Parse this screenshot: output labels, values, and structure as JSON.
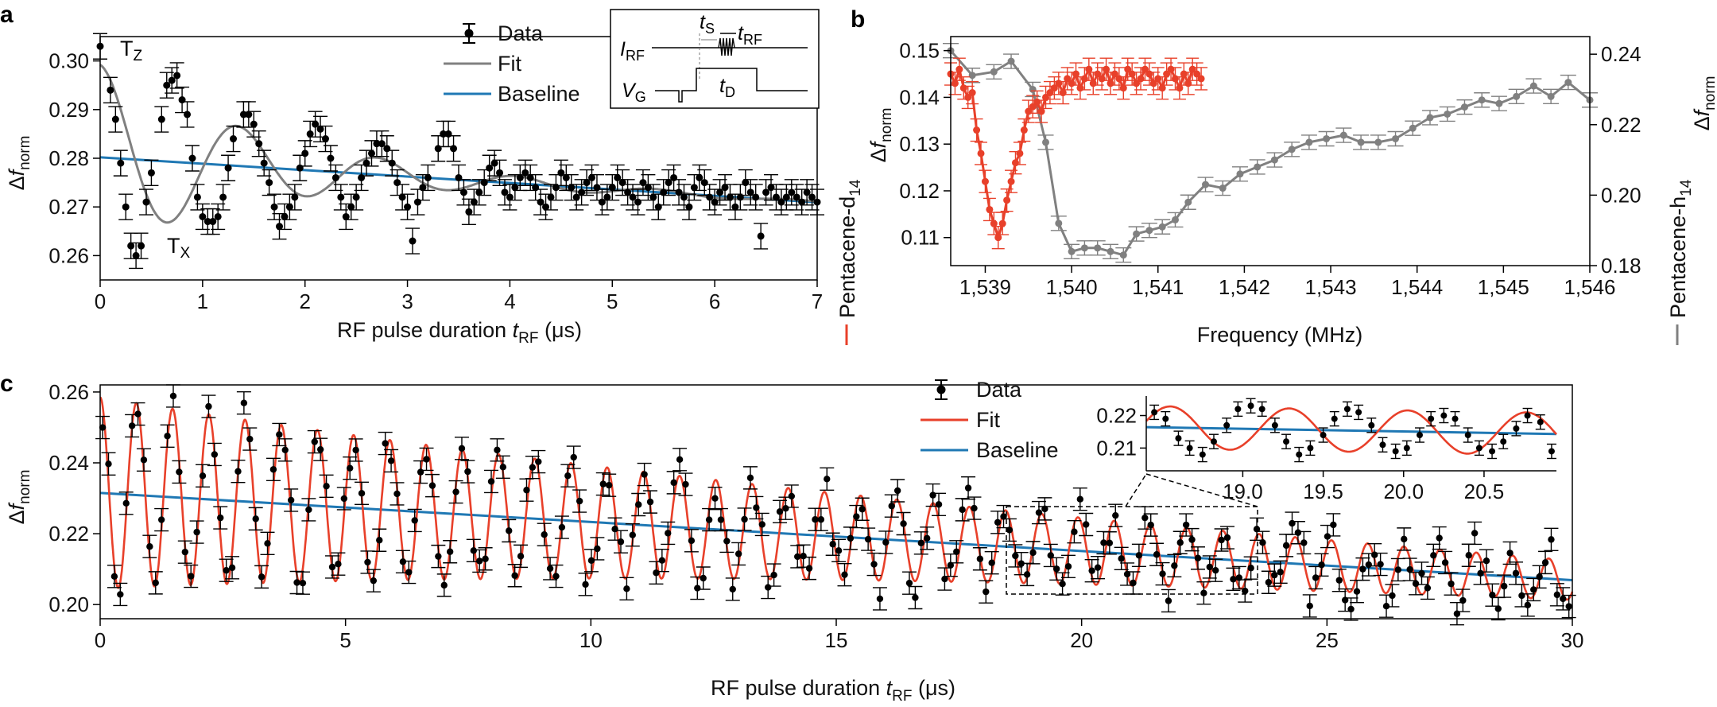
{
  "colors": {
    "data": "#000000",
    "fit_gray": "#808080",
    "fit_red": "#e8402a",
    "baseline": "#1f78b4",
    "axis": "#000000"
  },
  "panels": {
    "a": "a",
    "b": "b",
    "c": "c"
  },
  "chart_data": [
    {
      "id": "a",
      "type": "scatter",
      "xlabel_parts": [
        "RF pulse duration ",
        "t",
        "RF",
        " (μs)"
      ],
      "ylabel_parts": [
        "Δ",
        "f",
        "norm"
      ],
      "xlim": [
        0,
        7
      ],
      "ylim": [
        0.255,
        0.305
      ],
      "xticks": [
        0,
        1,
        2,
        3,
        4,
        5,
        6,
        7
      ],
      "xtick_labels": [
        "0",
        "1",
        "2",
        "3",
        "4",
        "5",
        "6",
        "7"
      ],
      "yticks": [
        0.26,
        0.27,
        0.28,
        0.29,
        0.3
      ],
      "ytick_labels": [
        "0.26",
        "0.27",
        "0.28",
        "0.29",
        "0.30"
      ],
      "legend": [
        "Data",
        "Fit",
        "Baseline"
      ],
      "annotations": {
        "tz": "T",
        "tz_sub": "Z",
        "tx": "T",
        "tx_sub": "X"
      },
      "inset": {
        "irf": "I",
        "irf_sub": "RF",
        "vg": "V",
        "vg_sub": "G",
        "ts": "t",
        "ts_sub": "S",
        "trf": "t",
        "trf_sub": "RF",
        "td": "t",
        "td_sub": "D"
      },
      "fit": {
        "baseline": [
          0.2802,
          -0.00132
        ],
        "amp0": 0.019,
        "tau": 1.6,
        "freq": 0.735,
        "phase": 0.0
      },
      "series": [
        {
          "x": [
            0.0,
            0.1,
            0.15,
            0.2,
            0.25,
            0.3,
            0.35,
            0.4,
            0.45,
            0.5,
            0.6,
            0.65,
            0.7,
            0.75,
            0.8,
            0.85,
            0.9,
            0.95,
            1.0,
            1.05,
            1.1,
            1.15,
            1.2,
            1.25,
            1.3,
            1.4,
            1.45,
            1.5,
            1.55,
            1.6,
            1.65,
            1.7,
            1.75,
            1.8,
            1.85,
            1.9,
            1.95,
            2.0,
            2.05,
            2.1,
            2.15,
            2.2,
            2.25,
            2.3,
            2.35,
            2.4,
            2.45,
            2.5,
            2.55,
            2.6,
            2.65,
            2.7,
            2.75,
            2.8,
            2.85,
            2.9,
            2.95,
            3.0,
            3.05,
            3.1,
            3.15,
            3.2,
            3.3,
            3.35,
            3.4,
            3.45,
            3.5,
            3.55,
            3.6,
            3.65,
            3.7,
            3.75,
            3.8,
            3.85,
            3.9,
            3.95,
            4.0,
            4.05,
            4.1,
            4.15,
            4.2,
            4.25,
            4.3,
            4.35,
            4.4,
            4.45,
            4.5,
            4.55,
            4.6,
            4.65,
            4.7,
            4.75,
            4.8,
            4.85,
            4.9,
            4.95,
            5.0,
            5.05,
            5.1,
            5.15,
            5.2,
            5.25,
            5.3,
            5.35,
            5.4,
            5.45,
            5.5,
            5.55,
            5.6,
            5.65,
            5.7,
            5.75,
            5.8,
            5.85,
            5.9,
            5.95,
            6.0,
            6.05,
            6.1,
            6.15,
            6.2,
            6.25,
            6.3,
            6.35,
            6.4,
            6.45,
            6.5,
            6.55,
            6.6,
            6.65,
            6.7,
            6.75,
            6.8,
            6.85,
            6.9,
            6.95,
            7.0
          ],
          "y": [
            0.303,
            0.294,
            0.288,
            0.279,
            0.27,
            0.262,
            0.26,
            0.262,
            0.271,
            0.277,
            0.288,
            0.295,
            0.296,
            0.297,
            0.292,
            0.289,
            0.28,
            0.272,
            0.268,
            0.267,
            0.267,
            0.268,
            0.272,
            0.278,
            0.284,
            0.289,
            0.289,
            0.287,
            0.283,
            0.279,
            0.275,
            0.27,
            0.266,
            0.268,
            0.27,
            0.272,
            0.278,
            0.281,
            0.285,
            0.287,
            0.286,
            0.284,
            0.28,
            0.276,
            0.272,
            0.268,
            0.27,
            0.272,
            0.276,
            0.279,
            0.281,
            0.283,
            0.283,
            0.282,
            0.279,
            0.275,
            0.272,
            0.27,
            0.263,
            0.271,
            0.274,
            0.276,
            0.282,
            0.285,
            0.285,
            0.282,
            0.276,
            0.273,
            0.269,
            0.271,
            0.273,
            0.275,
            0.278,
            0.279,
            0.277,
            0.273,
            0.272,
            0.274,
            0.276,
            0.277,
            0.276,
            0.274,
            0.271,
            0.27,
            0.272,
            0.274,
            0.277,
            0.276,
            0.274,
            0.272,
            0.273,
            0.275,
            0.276,
            0.274,
            0.271,
            0.272,
            0.274,
            0.276,
            0.275,
            0.273,
            0.272,
            0.271,
            0.275,
            0.274,
            0.272,
            0.27,
            0.273,
            0.275,
            0.276,
            0.273,
            0.272,
            0.27,
            0.274,
            0.276,
            0.275,
            0.272,
            0.271,
            0.273,
            0.274,
            0.272,
            0.27,
            0.272,
            0.275,
            0.273,
            0.272,
            0.264,
            0.273,
            0.274,
            0.272,
            0.271,
            0.272,
            0.273,
            0.272,
            0.271,
            0.273,
            0.272,
            0.271
          ]
        }
      ]
    },
    {
      "id": "b",
      "type": "line",
      "xlabel": "Frequency (MHz)",
      "ylabel_left_parts": [
        "Δ",
        "f",
        "norm"
      ],
      "ylabel_right_parts": [
        "Δ",
        "f",
        "norm"
      ],
      "xlim": [
        1538.6,
        1546.0
      ],
      "ylim_left": [
        0.104,
        0.153
      ],
      "ylim_right": [
        0.18,
        0.245
      ],
      "xticks": [
        1539,
        1540,
        1541,
        1542,
        1543,
        1544,
        1545,
        1546
      ],
      "xtick_labels": [
        "1,539",
        "1,540",
        "1,541",
        "1,542",
        "1,543",
        "1,544",
        "1,545",
        "1,546"
      ],
      "yticks_left": [
        0.11,
        0.12,
        0.13,
        0.14,
        0.15
      ],
      "ytick_labels_left": [
        "0.11",
        "0.12",
        "0.13",
        "0.14",
        "0.15"
      ],
      "yticks_right": [
        0.18,
        0.2,
        0.22,
        0.24
      ],
      "ytick_labels_right": [
        "0.18",
        "0.20",
        "0.22",
        "0.24"
      ],
      "series": [
        {
          "name_parts": [
            "Pentacene-d",
            "14"
          ],
          "axis": "left",
          "x": [
            1538.6,
            1538.65,
            1538.7,
            1538.75,
            1538.8,
            1538.85,
            1538.9,
            1538.95,
            1539.0,
            1539.05,
            1539.1,
            1539.15,
            1539.2,
            1539.25,
            1539.3,
            1539.35,
            1539.4,
            1539.45,
            1539.5,
            1539.55,
            1539.6,
            1539.65,
            1539.7,
            1539.75,
            1539.8,
            1539.85,
            1539.9,
            1539.95,
            1540.0,
            1540.05,
            1540.1,
            1540.15,
            1540.2,
            1540.25,
            1540.3,
            1540.35,
            1540.4,
            1540.45,
            1540.5,
            1540.55,
            1540.6,
            1540.65,
            1540.7,
            1540.75,
            1540.8,
            1540.85,
            1540.9,
            1540.95,
            1541.0,
            1541.05,
            1541.1,
            1541.15,
            1541.2,
            1541.25,
            1541.3,
            1541.35,
            1541.4,
            1541.45,
            1541.5
          ],
          "y": [
            0.145,
            0.143,
            0.146,
            0.142,
            0.14,
            0.141,
            0.133,
            0.128,
            0.122,
            0.116,
            0.113,
            0.11,
            0.113,
            0.118,
            0.122,
            0.126,
            0.128,
            0.133,
            0.137,
            0.138,
            0.139,
            0.137,
            0.14,
            0.141,
            0.142,
            0.143,
            0.141,
            0.144,
            0.143,
            0.145,
            0.142,
            0.144,
            0.146,
            0.143,
            0.145,
            0.144,
            0.146,
            0.143,
            0.145,
            0.144,
            0.142,
            0.146,
            0.145,
            0.143,
            0.144,
            0.146,
            0.145,
            0.143,
            0.144,
            0.142,
            0.145,
            0.146,
            0.144,
            0.142,
            0.145,
            0.143,
            0.146,
            0.145,
            0.144
          ]
        },
        {
          "name_parts": [
            "Pentacene-h",
            "14"
          ],
          "axis": "right",
          "x": [
            1538.6,
            1538.85,
            1539.1,
            1539.3,
            1539.55,
            1539.7,
            1539.85,
            1540.0,
            1540.15,
            1540.3,
            1540.45,
            1540.6,
            1540.75,
            1540.9,
            1541.05,
            1541.2,
            1541.35,
            1541.55,
            1541.75,
            1541.95,
            1542.15,
            1542.35,
            1542.55,
            1542.75,
            1542.95,
            1543.15,
            1543.35,
            1543.55,
            1543.75,
            1543.95,
            1544.15,
            1544.35,
            1544.55,
            1544.75,
            1544.95,
            1545.15,
            1545.35,
            1545.55,
            1545.75,
            1546.0
          ],
          "y": [
            0.241,
            0.234,
            0.235,
            0.238,
            0.23,
            0.215,
            0.192,
            0.184,
            0.185,
            0.185,
            0.184,
            0.183,
            0.189,
            0.19,
            0.191,
            0.193,
            0.198,
            0.203,
            0.202,
            0.206,
            0.208,
            0.21,
            0.213,
            0.215,
            0.216,
            0.217,
            0.215,
            0.215,
            0.216,
            0.219,
            0.222,
            0.223,
            0.225,
            0.227,
            0.226,
            0.228,
            0.231,
            0.228,
            0.232,
            0.227
          ]
        }
      ]
    },
    {
      "id": "c",
      "type": "scatter",
      "xlabel_parts": [
        "RF pulse duration ",
        "t",
        "RF",
        " (μs)"
      ],
      "ylabel_parts": [
        "Δ",
        "f",
        "norm"
      ],
      "xlim": [
        0,
        30
      ],
      "ylim": [
        0.196,
        0.262
      ],
      "xticks": [
        0,
        5,
        10,
        15,
        20,
        25,
        30
      ],
      "xtick_labels": [
        "0",
        "5",
        "10",
        "15",
        "20",
        "25",
        "30"
      ],
      "yticks": [
        0.2,
        0.22,
        0.24,
        0.26
      ],
      "ytick_labels": [
        "0.20",
        "0.22",
        "0.24",
        "0.26"
      ],
      "legend": [
        "Data",
        "Fit",
        "Baseline"
      ],
      "fit": {
        "baseline": [
          0.2315,
          -0.00082
        ],
        "amp0": 0.027,
        "tau": 19.0,
        "freq": 1.355,
        "phase": 0.0,
        "period_step": 0.36
      },
      "inset": {
        "xlim": [
          18.4,
          20.95
        ],
        "ylim": [
          0.203,
          0.226
        ],
        "xticks": [
          19.0,
          19.5,
          20.0,
          20.5
        ],
        "xtick_labels": [
          "19.0",
          "19.5",
          "20.0",
          "20.5"
        ],
        "yticks": [
          0.21,
          0.22
        ],
        "ytick_labels": [
          "0.21",
          "0.22"
        ],
        "x": [
          18.45,
          18.52,
          18.6,
          18.67,
          18.75,
          18.82,
          18.9,
          18.97,
          19.05,
          19.12,
          19.2,
          19.27,
          19.35,
          19.42,
          19.5,
          19.57,
          19.65,
          19.72,
          19.8,
          19.87,
          19.95,
          20.02,
          20.1,
          20.17,
          20.25,
          20.32,
          20.4,
          20.47,
          20.55,
          20.62,
          20.7,
          20.77,
          20.85,
          20.92
        ],
        "y": [
          0.221,
          0.219,
          0.213,
          0.21,
          0.208,
          0.212,
          0.217,
          0.222,
          0.223,
          0.222,
          0.217,
          0.212,
          0.208,
          0.21,
          0.214,
          0.219,
          0.222,
          0.221,
          0.217,
          0.211,
          0.209,
          0.21,
          0.214,
          0.219,
          0.22,
          0.219,
          0.214,
          0.21,
          0.209,
          0.212,
          0.216,
          0.22,
          0.218,
          0.209
        ]
      }
    }
  ]
}
